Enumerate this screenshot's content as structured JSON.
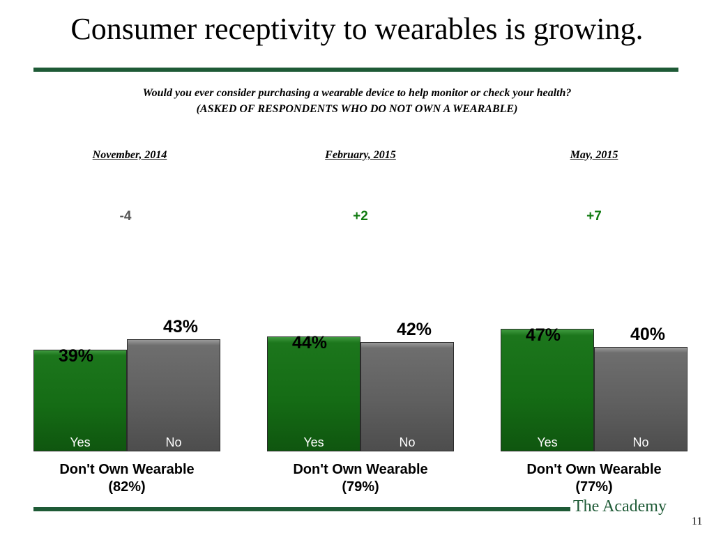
{
  "title": "Consumer receptivity to wearables is growing.",
  "question_line1": "Would you ever consider purchasing a wearable device to help monitor or check your health?",
  "question_line2": "(ASKED OF RESPONDENTS WHO DO NOT OWN A WEARABLE)",
  "footer": {
    "brand": "The Academy",
    "page_number": "11"
  },
  "colors": {
    "yes": "#156c15",
    "no": "#5f5f5f",
    "positive_change": "#0f7a0f",
    "negative_change": "#555555",
    "rule": "#1e5a36"
  },
  "chart_data": {
    "type": "bar",
    "ylim": [
      0,
      100
    ],
    "groups": [
      {
        "period": "November, 2014",
        "change": "-4",
        "change_sign": "negative",
        "label": "Don't Own Wearable",
        "sublabel": "(82%)",
        "bars": [
          {
            "category": "Yes",
            "value": 39,
            "label": "39%"
          },
          {
            "category": "No",
            "value": 43,
            "label": "43%"
          }
        ]
      },
      {
        "period": "February, 2015",
        "change": "+2",
        "change_sign": "positive",
        "label": "Don't Own Wearable",
        "sublabel": "(79%)",
        "bars": [
          {
            "category": "Yes",
            "value": 44,
            "label": "44%"
          },
          {
            "category": "No",
            "value": 42,
            "label": "42%"
          }
        ]
      },
      {
        "period": "May, 2015",
        "change": "+7",
        "change_sign": "positive",
        "label": "Don't Own Wearable",
        "sublabel": "(77%)",
        "bars": [
          {
            "category": "Yes",
            "value": 47,
            "label": "47%"
          },
          {
            "category": "No",
            "value": 40,
            "label": "40%"
          }
        ]
      }
    ]
  }
}
